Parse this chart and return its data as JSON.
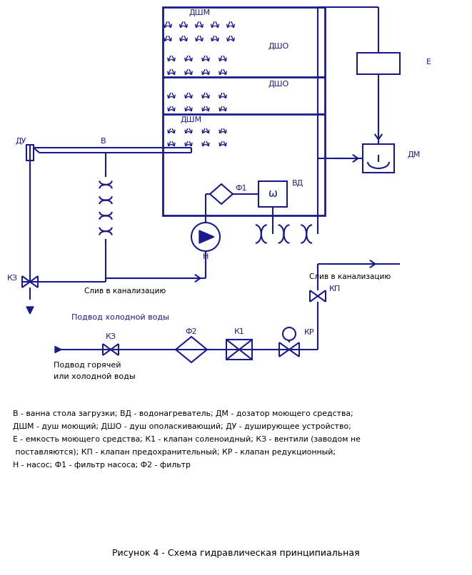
{
  "title": "Рисунок 4 - Схема гидравлическая принципиальная",
  "color": "#1a1a8c",
  "bg_color": "#ffffff",
  "legend_lines": [
    "В - ванна стола загрузки; ВД - водонагреватель; ДМ - дозатор моющего средства;",
    "ДШМ - душ моющий; ДШО - душ ополаскивающий; ДУ - душирующее устройство;",
    "Е - емкость моющего средства; К1 - клапан соленоидный; КЗ - вентили (заводом не",
    " поставляются); КП - клапан предохранительный; КР - клапан редукционный;",
    "Н - насос; Ф1 - фильтр насоса; Ф2 - фильтр"
  ]
}
